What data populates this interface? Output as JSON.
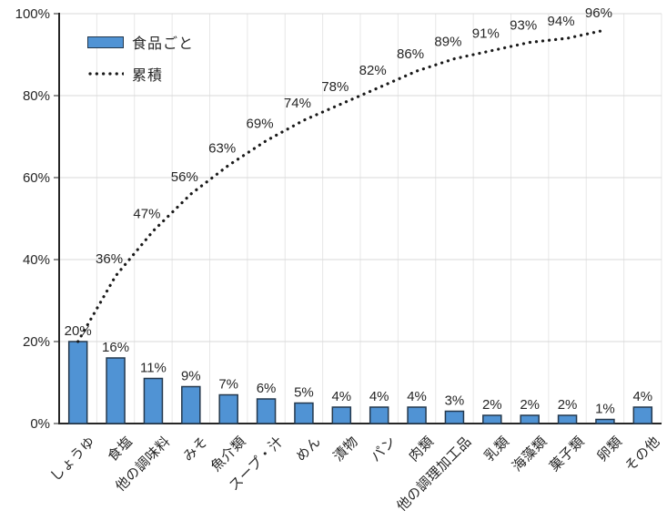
{
  "chart_data": {
    "type": "bar",
    "subtype": "pareto (bar + cumulative dotted line)",
    "title": "",
    "xlabel": "",
    "ylabel": "",
    "categories": [
      "しょうゆ",
      "食塩",
      "他の調味料",
      "みそ",
      "魚介類",
      "スープ・汁",
      "めん",
      "漬物",
      "パン",
      "肉類",
      "他の調理加工品",
      "乳類",
      "海藻類",
      "菓子類",
      "卵類",
      "その他"
    ],
    "series": [
      {
        "name": "食品ごと",
        "type": "bar",
        "values": [
          20,
          16,
          11,
          9,
          7,
          6,
          5,
          4,
          4,
          4,
          3,
          2,
          2,
          2,
          1,
          4
        ],
        "labels": [
          "20%",
          "16%",
          "11%",
          "9%",
          "7%",
          "6%",
          "5%",
          "4%",
          "4%",
          "4%",
          "3%",
          "2%",
          "2%",
          "2%",
          "1%",
          "4%"
        ]
      },
      {
        "name": "累積",
        "type": "dotted-line",
        "values": [
          20,
          36,
          47,
          56,
          63,
          69,
          74,
          78,
          82,
          86,
          89,
          91,
          93,
          94,
          96
        ],
        "labels": [
          "",
          "36%",
          "47%",
          "56%",
          "63%",
          "69%",
          "74%",
          "78%",
          "82%",
          "86%",
          "89%",
          "91%",
          "93%",
          "94%",
          "96%"
        ]
      }
    ],
    "y_axis": {
      "min": 0,
      "max": 100,
      "tick_step": 20,
      "ticks": [
        "0%",
        "20%",
        "40%",
        "60%",
        "80%",
        "100%"
      ]
    },
    "grid": {
      "horizontal": true,
      "vertical": true
    },
    "legend_position": "inside-top-left"
  },
  "colors": {
    "bar_fill": "#5093d4",
    "bar_border": "#24384d",
    "line": "#1a1a1a",
    "grid_h": "#d9d9d9",
    "grid_v": "#e7e7e7",
    "axis": "#262626",
    "text": "#262626"
  }
}
